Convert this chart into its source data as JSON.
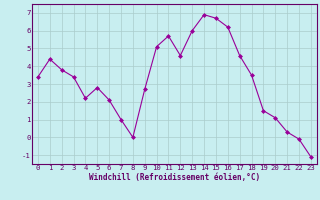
{
  "x": [
    0,
    1,
    2,
    3,
    4,
    5,
    6,
    7,
    8,
    9,
    10,
    11,
    12,
    13,
    14,
    15,
    16,
    17,
    18,
    19,
    20,
    21,
    22,
    23
  ],
  "y": [
    3.4,
    4.4,
    3.8,
    3.4,
    2.2,
    2.8,
    2.1,
    1.0,
    0.0,
    2.7,
    5.1,
    5.7,
    4.6,
    6.0,
    6.9,
    6.7,
    6.2,
    4.6,
    3.5,
    1.5,
    1.1,
    0.3,
    -0.1,
    -1.1
  ],
  "line_color": "#990099",
  "marker": "D",
  "marker_size": 2,
  "bg_color": "#c8eef0",
  "grid_color": "#aacccc",
  "xlabel": "Windchill (Refroidissement éolien,°C)",
  "xlim": [
    -0.5,
    23.5
  ],
  "ylim": [
    -1.5,
    7.5
  ],
  "yticks": [
    -1,
    0,
    1,
    2,
    3,
    4,
    5,
    6,
    7
  ],
  "xticks": [
    0,
    1,
    2,
    3,
    4,
    5,
    6,
    7,
    8,
    9,
    10,
    11,
    12,
    13,
    14,
    15,
    16,
    17,
    18,
    19,
    20,
    21,
    22,
    23
  ],
  "label_color": "#660066",
  "tick_color": "#660066",
  "spine_color": "#660066",
  "tick_fontsize": 5.2,
  "xlabel_fontsize": 5.5
}
